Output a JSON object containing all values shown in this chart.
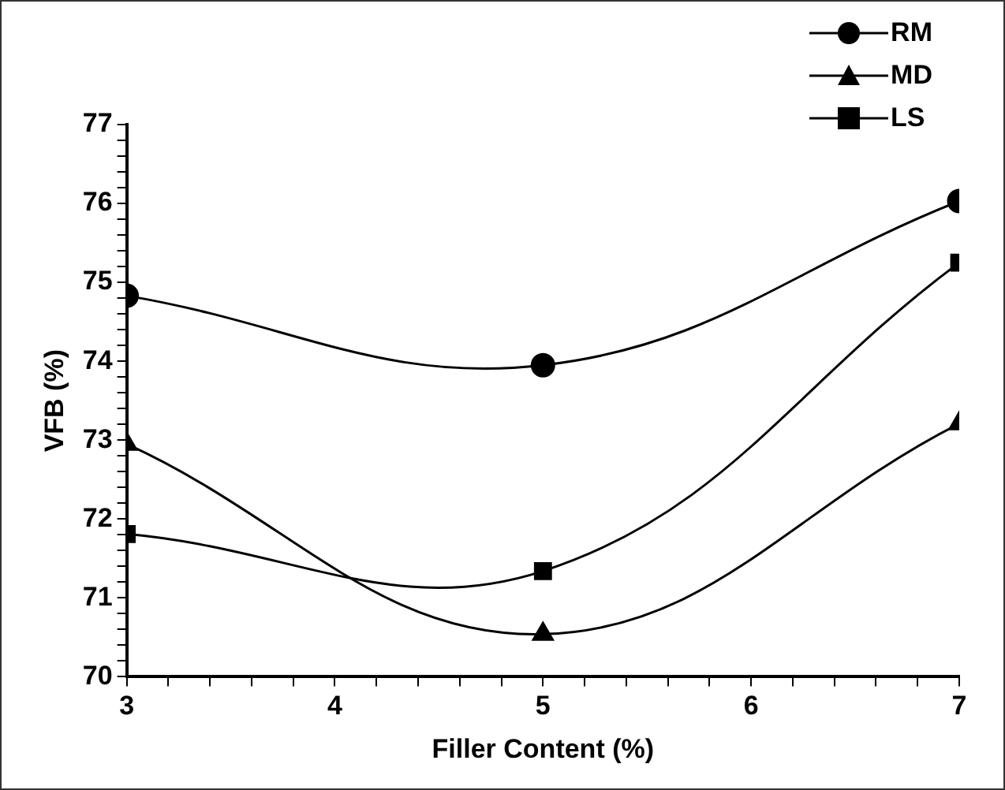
{
  "chart_data": {
    "type": "line",
    "xlabel": "Filler Content (%)",
    "ylabel": "VFB (%)",
    "x": [
      3,
      5,
      7
    ],
    "series": [
      {
        "name": "RM",
        "color": "#000000",
        "marker": "circle",
        "values": [
          74.83,
          73.95,
          76.03
        ]
      },
      {
        "name": "MD",
        "color": "#000000",
        "marker": "triangle",
        "values": [
          72.95,
          70.54,
          73.21
        ]
      },
      {
        "name": "LS",
        "color": "#000000",
        "marker": "square",
        "values": [
          71.81,
          71.34,
          75.25
        ]
      }
    ],
    "xlim": [
      3,
      7
    ],
    "ylim": [
      70,
      77
    ],
    "xticks": [
      3,
      {
        "value": 3.2,
        "label": null
      },
      {
        "value": 3.4,
        "label": null
      },
      {
        "value": 3.6,
        "label": null
      },
      {
        "value": 3.8,
        "label": null
      },
      4,
      {
        "value": 4.2,
        "label": null
      },
      {
        "value": 4.4,
        "label": null
      },
      {
        "value": 4.6,
        "label": null
      },
      {
        "value": 4.8,
        "label": null
      },
      5,
      {
        "value": 5.2,
        "label": null
      },
      {
        "value": 5.4,
        "label": null
      },
      {
        "value": 5.6,
        "label": null
      },
      {
        "value": 5.8,
        "label": null
      },
      6,
      {
        "value": 6.2,
        "label": null
      },
      {
        "value": 6.4,
        "label": null
      },
      {
        "value": 6.6,
        "label": null
      },
      {
        "value": 6.8,
        "label": null
      },
      7
    ],
    "yticks": [
      70,
      {
        "value": 70.2,
        "label": null
      },
      {
        "value": 70.4,
        "label": null
      },
      {
        "value": 70.6,
        "label": null
      },
      {
        "value": 70.8,
        "label": null
      },
      71,
      {
        "value": 71.2,
        "label": null
      },
      {
        "value": 71.4,
        "label": null
      },
      {
        "value": 71.6,
        "label": null
      },
      {
        "value": 71.8,
        "label": null
      },
      72,
      {
        "value": 72.2,
        "label": null
      },
      {
        "value": 72.4,
        "label": null
      },
      {
        "value": 72.6,
        "label": null
      },
      {
        "value": 72.8,
        "label": null
      },
      73,
      {
        "value": 73.2,
        "label": null
      },
      {
        "value": 73.4,
        "label": null
      },
      {
        "value": 73.6,
        "label": null
      },
      {
        "value": 73.8,
        "label": null
      },
      74,
      {
        "value": 74.2,
        "label": null
      },
      {
        "value": 74.4,
        "label": null
      },
      {
        "value": 74.6,
        "label": null
      },
      {
        "value": 74.8,
        "label": null
      },
      75,
      {
        "value": 75.2,
        "label": null
      },
      {
        "value": 75.4,
        "label": null
      },
      {
        "value": 75.6,
        "label": null
      },
      {
        "value": 75.8,
        "label": null
      },
      76,
      {
        "value": 76.2,
        "label": null
      },
      {
        "value": 76.4,
        "label": null
      },
      {
        "value": 76.6,
        "label": null
      },
      {
        "value": 76.8,
        "label": null
      },
      77
    ],
    "grid": false,
    "legend": "top right",
    "line_style": "solid"
  }
}
